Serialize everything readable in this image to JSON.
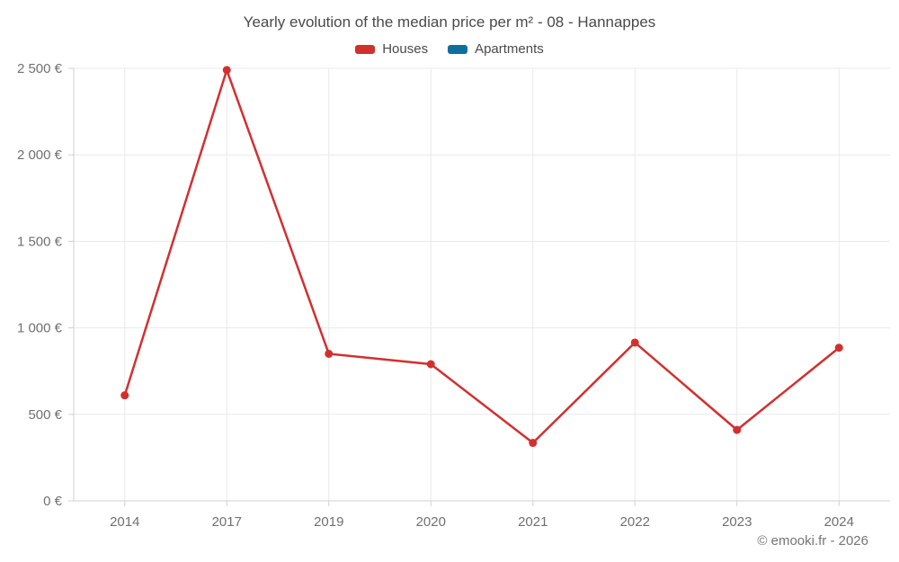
{
  "title": "Yearly evolution of the median price per m² - 08 - Hannappes",
  "footer": "© emooki.fr - 2026",
  "colors": {
    "houses": "#d32f2f",
    "apartments": "#0d6fa0",
    "title_text": "#4a4a4a",
    "axis_text": "#707070",
    "grid": "#e9e9e9",
    "axis_line": "#d0d0d0"
  },
  "legend": [
    {
      "label": "Houses",
      "color_key": "houses"
    },
    {
      "label": "Apartments",
      "color_key": "apartments"
    }
  ],
  "chart_data": {
    "type": "line",
    "title": "Yearly evolution of the median price per m² - 08 - Hannappes",
    "xlabel": "",
    "ylabel": "",
    "categories": [
      "2014",
      "2017",
      "2019",
      "2020",
      "2021",
      "2022",
      "2023",
      "2024"
    ],
    "series": [
      {
        "name": "Houses",
        "color": "#d32f2f",
        "values": [
          610,
          2490,
          850,
          790,
          335,
          915,
          410,
          885
        ]
      },
      {
        "name": "Apartments",
        "color": "#0d6fa0",
        "values": []
      }
    ],
    "ylim": [
      0,
      2500
    ],
    "ytick_step": 500,
    "ytick_labels": [
      "0 €",
      "500 €",
      "1 000 €",
      "1 500 €",
      "2 000 €",
      "2 500 €"
    ],
    "grid": true,
    "legend_position": "top",
    "marker": "circle"
  }
}
